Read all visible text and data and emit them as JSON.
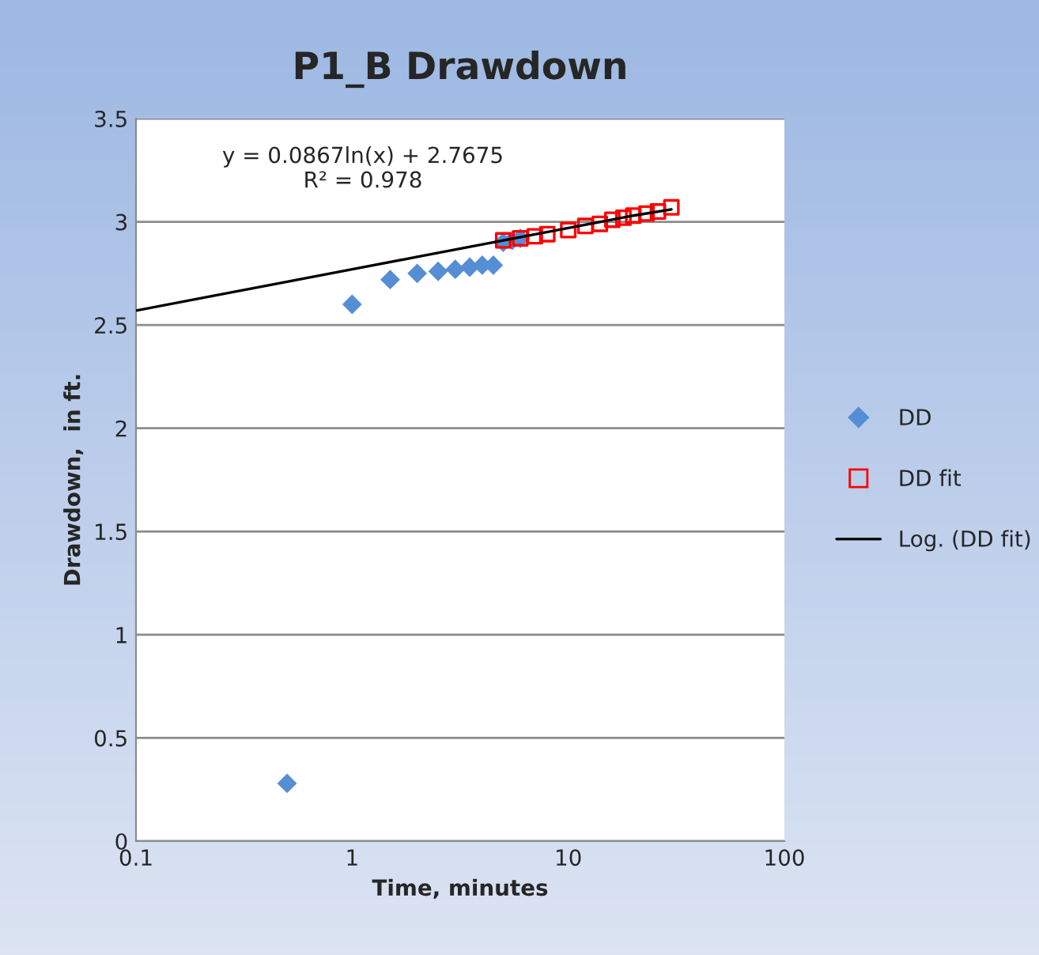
{
  "chart_data": {
    "type": "scatter",
    "title": "P1_B Drawdown",
    "xlabel": "Time, minutes",
    "ylabel": "Drawdown,  in ft.",
    "log": "x",
    "xlim": [
      0.1,
      100
    ],
    "xticks": [
      0.1,
      1,
      10,
      100
    ],
    "ylim": [
      0,
      3.5
    ],
    "yticks": [
      0,
      0.5,
      1,
      1.5,
      2,
      2.5,
      3,
      3.5
    ],
    "grid": "y",
    "legend": "right",
    "annotations": [
      "y = 0.0867ln(x) + 2.7675\nR² = 0.978"
    ],
    "series": [
      {
        "name": "DD",
        "marker": "diamond",
        "color": "#558ed5",
        "x": [
          0.5,
          1,
          1.5,
          2,
          2.5,
          3,
          3.5,
          4,
          4.5,
          5,
          5.5,
          6
        ],
        "values": [
          0.28,
          2.6,
          2.72,
          2.75,
          2.76,
          2.77,
          2.78,
          2.79,
          2.79,
          2.9,
          2.91,
          2.92
        ]
      },
      {
        "name": "DD fit",
        "marker": "square",
        "color": "#ff0000",
        "x": [
          5,
          6,
          7,
          8,
          10,
          12,
          14,
          16,
          18,
          20,
          23,
          26,
          30
        ],
        "values": [
          2.91,
          2.92,
          2.93,
          2.94,
          2.96,
          2.98,
          2.99,
          3.01,
          3.02,
          3.03,
          3.04,
          3.05,
          3.07
        ]
      },
      {
        "name": "Log. (DD fit)",
        "type": "line",
        "marker": "none",
        "color": "#000000",
        "x": [
          0.1,
          0.2,
          0.5,
          1,
          2,
          5,
          10,
          20,
          30
        ],
        "values": [
          2.57,
          2.63,
          2.71,
          2.77,
          2.83,
          2.91,
          2.97,
          3.03,
          3.06
        ]
      }
    ]
  }
}
